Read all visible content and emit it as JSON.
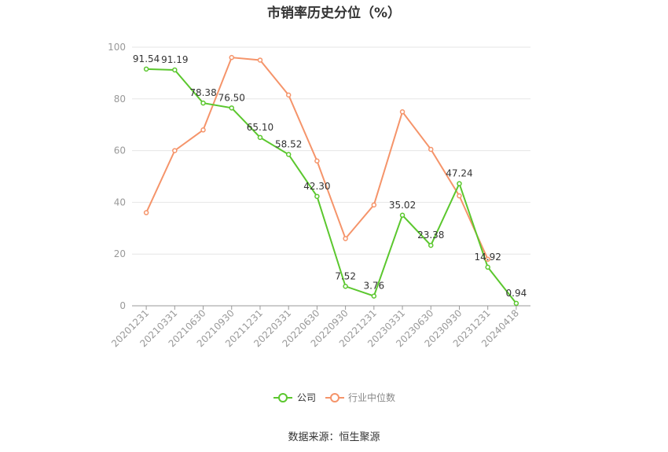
{
  "chart_data": {
    "type": "line",
    "title": "市销率历史分位（%）",
    "ylim": [
      0,
      100
    ],
    "yticks": [
      0,
      20,
      40,
      60,
      80,
      100
    ],
    "x": [
      "20201231",
      "20210331",
      "20210630",
      "20210930",
      "20211231",
      "20220331",
      "20220630",
      "20220930",
      "20221231",
      "20230331",
      "20230630",
      "20230930",
      "20231231",
      "20240418"
    ],
    "series": [
      {
        "name": "公司",
        "color": "#5bc72e",
        "values": [
          91.54,
          91.19,
          78.38,
          76.5,
          65.1,
          58.52,
          42.3,
          7.52,
          3.76,
          35.02,
          23.38,
          47.24,
          14.92,
          0.94
        ],
        "labels": [
          "91.54",
          "91.19",
          "78.38",
          "76.50",
          "65.10",
          "58.52",
          "42.30",
          "7.52",
          "3.76",
          "35.02",
          "23.38",
          "47.24",
          "14.92",
          "0.94"
        ]
      },
      {
        "name": "行业中位数",
        "color": "#f5946a",
        "values": [
          36,
          60,
          68,
          96,
          95,
          81.5,
          56,
          26,
          39,
          75,
          60.5,
          42.5,
          18,
          null
        ]
      }
    ],
    "legend_position": "bottom",
    "grid": true
  },
  "footer": {
    "source": "数据来源：恒生聚源"
  }
}
